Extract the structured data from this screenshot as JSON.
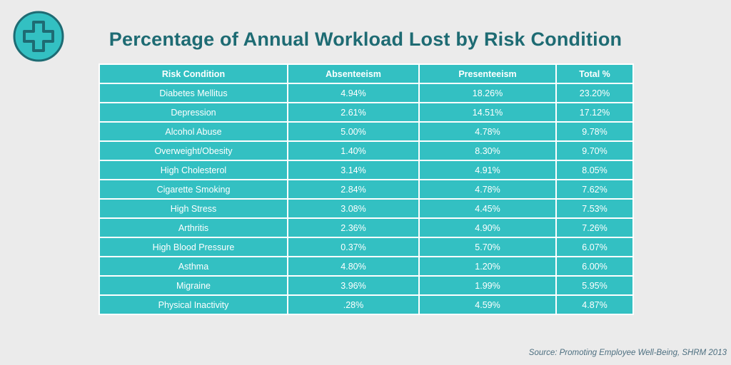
{
  "colors": {
    "background": "#ebebeb",
    "title": "#1e6b73",
    "cell_fill": "#33c0c2",
    "cell_text": "#ffffff",
    "logo_fill": "#33c0c2",
    "logo_outline": "#1e6b73",
    "source_text": "#4d6f80"
  },
  "logo": {
    "icon": "medical-cross-icon"
  },
  "chart_data": {
    "type": "table",
    "title": "Percentage of Annual Workload Lost by Risk Condition",
    "columns": [
      "Risk Condition",
      "Absenteeism",
      "Presenteeism",
      "Total %"
    ],
    "rows": [
      [
        "Diabetes Mellitus",
        "4.94%",
        "18.26%",
        "23.20%"
      ],
      [
        "Depression",
        "2.61%",
        "14.51%",
        "17.12%"
      ],
      [
        "Alcohol Abuse",
        "5.00%",
        "4.78%",
        "9.78%"
      ],
      [
        "Overweight/Obesity",
        "1.40%",
        "8.30%",
        "9.70%"
      ],
      [
        "High Cholesterol",
        "3.14%",
        "4.91%",
        "8.05%"
      ],
      [
        "Cigarette Smoking",
        "2.84%",
        "4.78%",
        "7.62%"
      ],
      [
        "High Stress",
        "3.08%",
        "4.45%",
        "7.53%"
      ],
      [
        "Arthritis",
        "2.36%",
        "4.90%",
        "7.26%"
      ],
      [
        "High Blood Pressure",
        "0.37%",
        "5.70%",
        "6.07%"
      ],
      [
        "Asthma",
        "4.80%",
        "1.20%",
        "6.00%"
      ],
      [
        "Migraine",
        "3.96%",
        "1.99%",
        "5.95%"
      ],
      [
        "Physical Inactivity",
        ".28%",
        "4.59%",
        "4.87%"
      ]
    ],
    "source": "Source: Promoting Employee Well-Being, SHRM 2013"
  }
}
